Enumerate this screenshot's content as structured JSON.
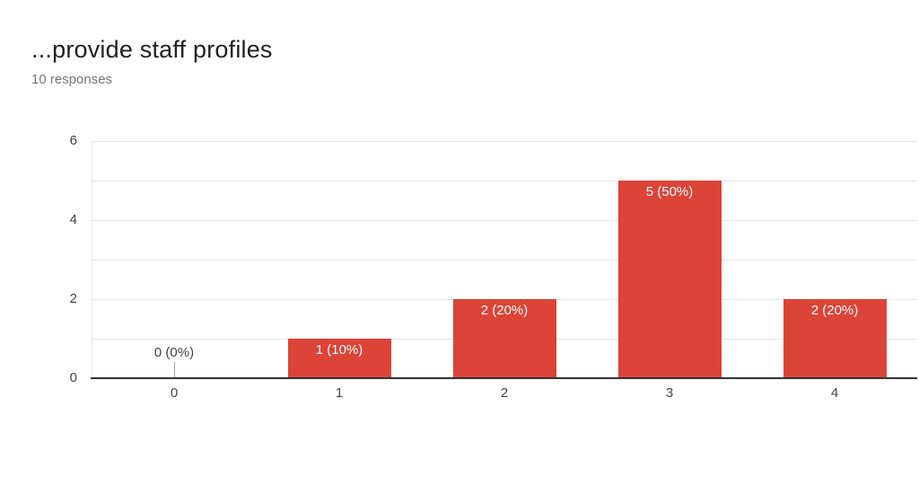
{
  "header": {
    "title": "...provide staff profiles",
    "subtitle": "10 responses"
  },
  "chart_data": {
    "type": "bar",
    "title": "...provide staff profiles",
    "subtitle": "10 responses",
    "total_responses": 10,
    "categories": [
      "0",
      "1",
      "2",
      "3",
      "4"
    ],
    "values": [
      0,
      1,
      2,
      5,
      2
    ],
    "percentages": [
      0,
      10,
      20,
      50,
      20
    ],
    "bar_labels": [
      "0 (0%)",
      "1 (10%)",
      "2 (20%)",
      "5 (50%)",
      "2 (20%)"
    ],
    "xlabel": "",
    "ylabel": "",
    "ylim": [
      0,
      6
    ],
    "yticks": [
      0,
      2,
      4,
      6
    ],
    "gridline_step": 1,
    "grid": true,
    "legend": "none",
    "colors": {
      "bar": "#db4437",
      "bar_label_text": "#ffffff",
      "zero_label_text": "#424242",
      "title": "#212121",
      "subtitle": "#757575",
      "axis_text": "#424242",
      "gridline": "#e6e6e6",
      "axis_line": "#333333",
      "leader_line": "#9e9e9e"
    }
  }
}
